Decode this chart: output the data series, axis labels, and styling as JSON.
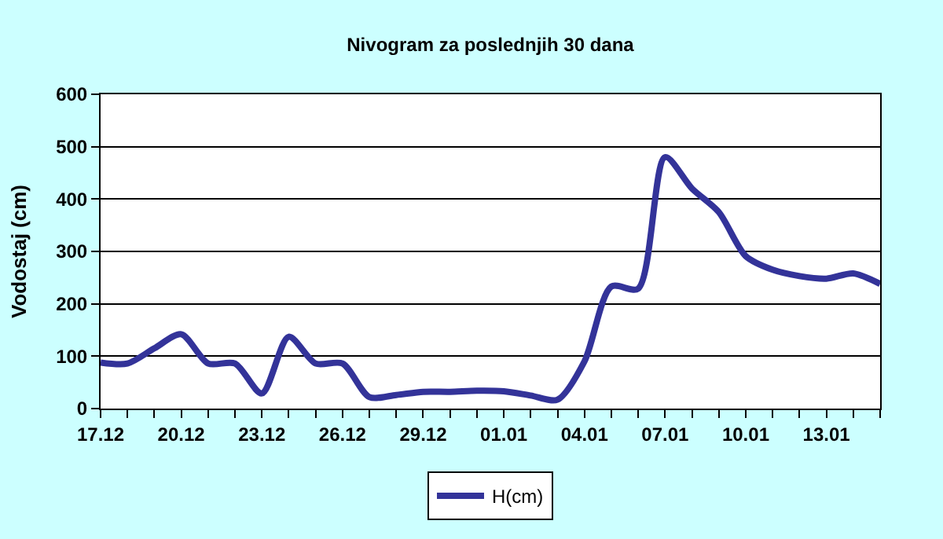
{
  "chart_data": {
    "type": "line",
    "title": "Nivogram za poslednjih 30 dana",
    "ylabel": "Vodostaj (cm)",
    "categories": [
      "17.12",
      null,
      null,
      "20.12",
      null,
      null,
      "23.12",
      null,
      null,
      "26.12",
      null,
      null,
      "29.12",
      null,
      null,
      "01.01",
      null,
      null,
      "04.01",
      null,
      null,
      "07.01",
      null,
      null,
      "10.01",
      null,
      null,
      "13.01",
      null,
      null
    ],
    "series": [
      {
        "name": "H(cm)",
        "color": "#333399",
        "values": [
          88,
          86,
          115,
          142,
          86,
          86,
          29,
          137,
          86,
          86,
          22,
          26,
          32,
          32,
          34,
          33,
          25,
          17,
          90,
          233,
          229,
          480,
          420,
          375,
          291,
          265,
          253,
          248,
          258,
          238
        ]
      }
    ],
    "ylim": [
      0,
      600
    ],
    "yticks": [
      0,
      100,
      200,
      300,
      400,
      500,
      600
    ],
    "grid": "y",
    "legend": "bottom",
    "marker": "none",
    "line_style": "solid"
  }
}
